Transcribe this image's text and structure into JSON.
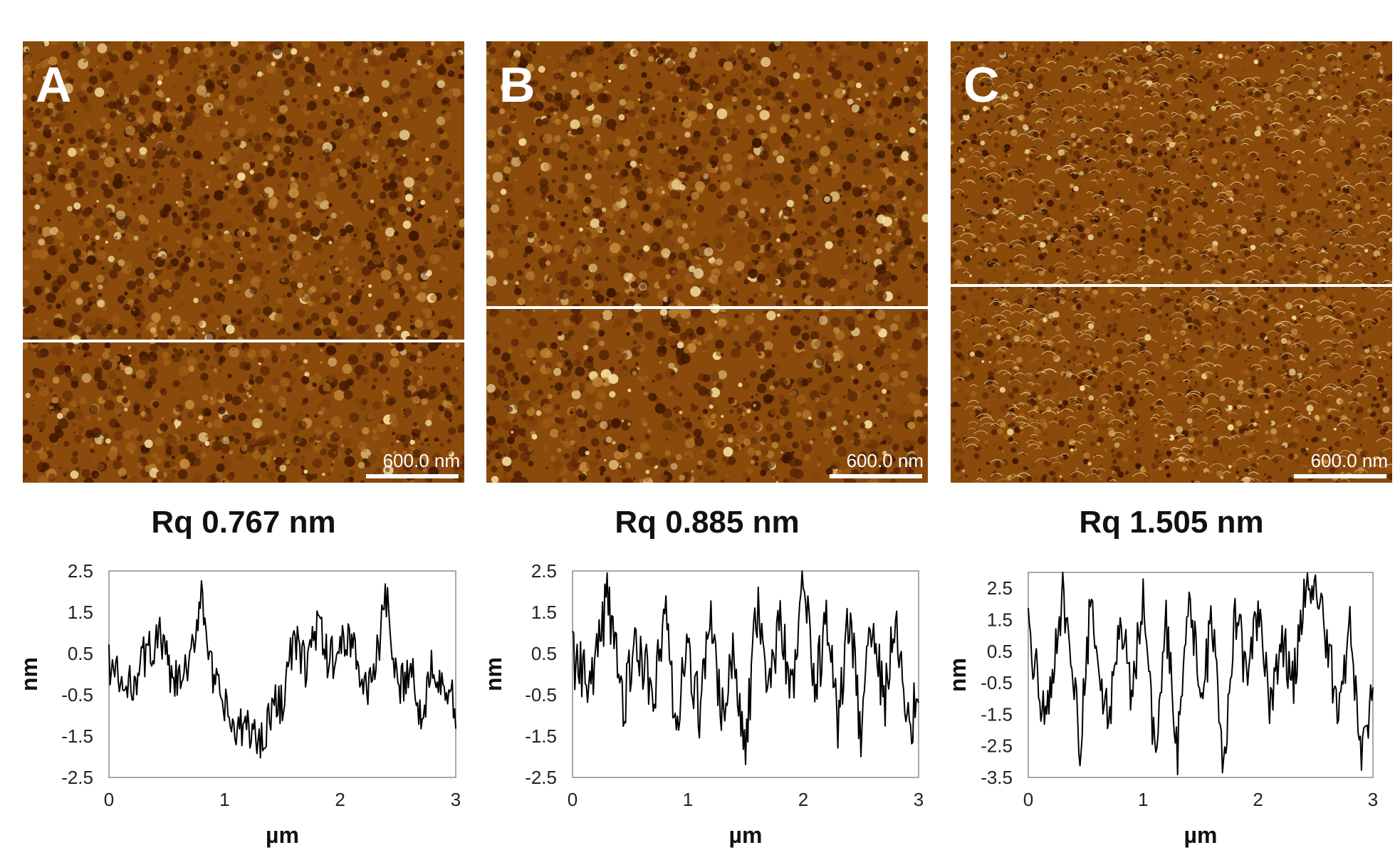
{
  "images": [
    {
      "letter": "A",
      "scale_label": "600.0 nm",
      "rq_label": "Rq 0.767 nm",
      "scan_line_fraction": 0.675
    },
    {
      "letter": "B",
      "scale_label": "600.0 nm",
      "rq_label": "Rq 0.885 nm",
      "scan_line_fraction": 0.6
    },
    {
      "letter": "C",
      "scale_label": "600.0 nm",
      "rq_label": "Rq 1.505 nm",
      "scan_line_fraction": 0.55
    }
  ],
  "colors": {
    "afm_dark": "#3d1600",
    "afm_mid": "#8a4a0c",
    "afm_light": "#f5dfa0",
    "scan_line": "#ffffff",
    "trace": "#000000"
  },
  "chart_data": [
    {
      "type": "line",
      "xlabel": "µm",
      "ylabel": "nm",
      "xlim": [
        0,
        3
      ],
      "ylim": [
        -2.5,
        2.5
      ],
      "xticks": [
        "0",
        "1",
        "2",
        "3"
      ],
      "yticks": [
        "2.5",
        "1.5",
        "0.5",
        "-0.5",
        "-1.5",
        "-2.5"
      ],
      "series": [
        {
          "x": [
            0,
            0.15,
            0.3,
            0.45,
            0.55,
            0.7,
            0.8,
            0.9,
            1.0,
            1.1,
            1.2,
            1.3,
            1.4,
            1.5,
            1.6,
            1.7,
            1.8,
            1.9,
            2.0,
            2.1,
            2.2,
            2.3,
            2.4,
            2.5,
            2.6,
            2.7,
            2.8,
            2.9,
            3.0
          ],
          "values": [
            0.3,
            -0.5,
            0.4,
            0.9,
            -0.3,
            0.1,
            2.1,
            -0.2,
            -0.8,
            -1.5,
            -1.2,
            -1.7,
            -0.9,
            -0.6,
            0.8,
            0.2,
            1.2,
            0.3,
            0.6,
            1.0,
            -0.5,
            0.2,
            1.8,
            -0.6,
            0.3,
            -1.1,
            0.4,
            -0.2,
            -0.9
          ]
        }
      ]
    },
    {
      "type": "line",
      "xlabel": "µm",
      "ylabel": "nm",
      "xlim": [
        0,
        3
      ],
      "ylim": [
        -2.5,
        2.5
      ],
      "xticks": [
        "0",
        "1",
        "2",
        "3"
      ],
      "yticks": [
        "2.5",
        "1.5",
        "0.5",
        "-0.5",
        "-1.5",
        "-2.5"
      ],
      "series": [
        {
          "x": [
            0,
            0.15,
            0.3,
            0.45,
            0.55,
            0.7,
            0.8,
            0.9,
            1.0,
            1.1,
            1.2,
            1.3,
            1.4,
            1.5,
            1.6,
            1.7,
            1.8,
            1.9,
            2.0,
            2.1,
            2.2,
            2.3,
            2.4,
            2.5,
            2.6,
            2.7,
            2.8,
            2.9,
            3.0
          ],
          "values": [
            0.4,
            -0.3,
            1.8,
            -0.8,
            1.0,
            -0.6,
            1.5,
            -1.2,
            0.7,
            -0.9,
            1.3,
            -1.0,
            0.5,
            -1.8,
            1.6,
            -0.5,
            1.4,
            -0.7,
            2.4,
            -0.4,
            1.2,
            -1.1,
            1.5,
            -1.6,
            1.6,
            -0.8,
            1.3,
            -1.4,
            -0.6
          ]
        }
      ]
    },
    {
      "type": "line",
      "xlabel": "µm",
      "ylabel": "nm",
      "xlim": [
        0,
        3
      ],
      "ylim": [
        -3.5,
        3.0
      ],
      "xticks": [
        "0",
        "1",
        "2",
        "3"
      ],
      "yticks": [
        "2.5",
        "1.5",
        "0.5",
        "-0.5",
        "-1.5",
        "-2.5",
        "-3.5"
      ],
      "series": [
        {
          "x": [
            0,
            0.15,
            0.3,
            0.45,
            0.55,
            0.7,
            0.8,
            0.9,
            1.0,
            1.1,
            1.2,
            1.3,
            1.4,
            1.5,
            1.6,
            1.7,
            1.8,
            1.9,
            2.0,
            2.1,
            2.2,
            2.3,
            2.4,
            2.5,
            2.6,
            2.7,
            2.8,
            2.9,
            3.0
          ],
          "values": [
            1.0,
            -1.8,
            2.4,
            -2.5,
            2.3,
            -2.1,
            1.9,
            -0.8,
            2.1,
            -2.9,
            1.5,
            -2.6,
            2.0,
            -0.9,
            1.3,
            -3.0,
            1.8,
            -0.2,
            1.6,
            -1.2,
            0.9,
            -0.5,
            2.0,
            2.7,
            0.7,
            -1.5,
            1.1,
            -2.7,
            -1.1
          ]
        }
      ]
    }
  ]
}
